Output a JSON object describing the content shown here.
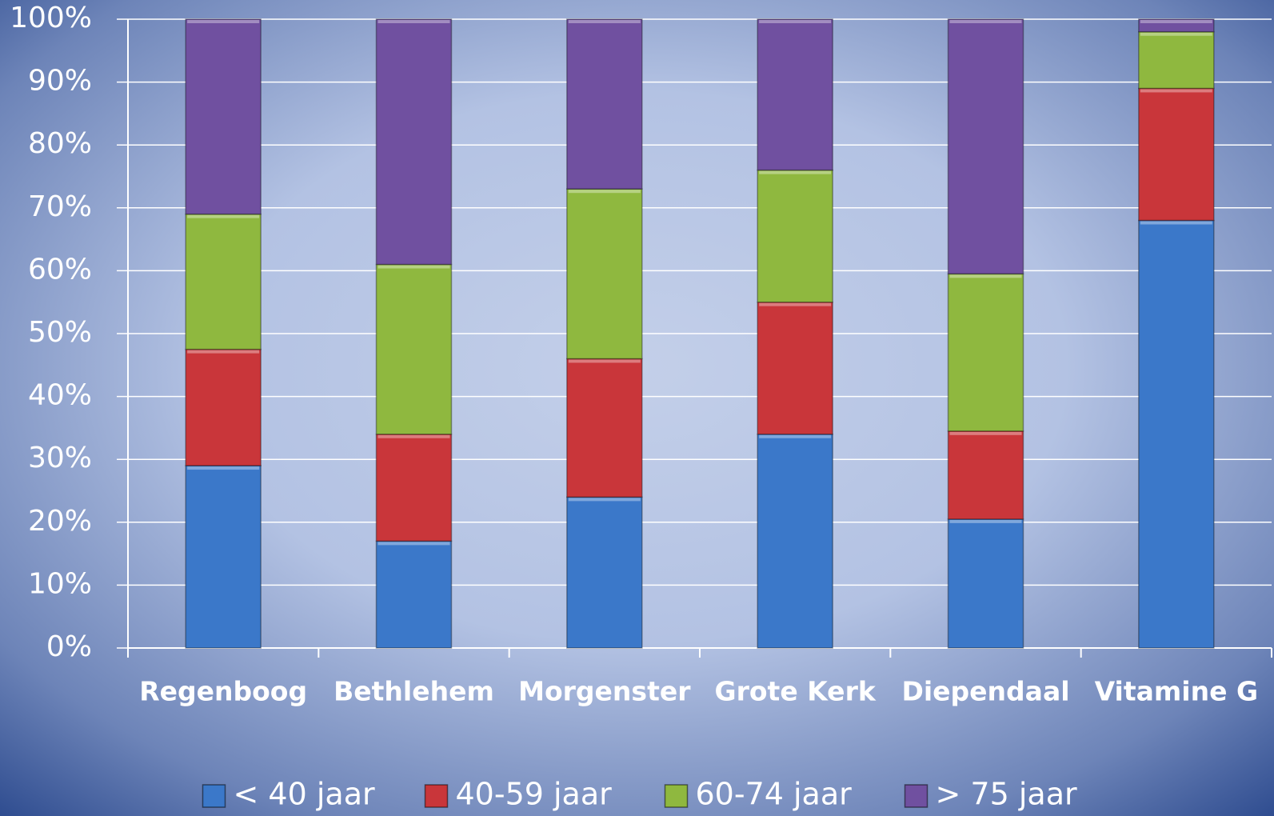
{
  "chart_data": {
    "type": "stacked_bar",
    "categories": [
      "Regenboog",
      "Bethlehem",
      "Morgenster",
      "Grote Kerk",
      "Diependaal",
      "Vitamine G"
    ],
    "series": [
      {
        "name": "< 40 jaar",
        "color": "#3b78c9",
        "values": [
          29,
          17,
          24,
          34,
          20.5,
          68
        ]
      },
      {
        "name": "40-59 jaar",
        "color": "#c9363a",
        "values": [
          18.5,
          17,
          22,
          21,
          14,
          21
        ]
      },
      {
        "name": "60-74 jaar",
        "color": "#8fb83f",
        "values": [
          21.5,
          27,
          27,
          21,
          25,
          9
        ]
      },
      {
        "name": "> 75 jaar",
        "color": "#7050a0",
        "values": [
          31,
          39,
          27,
          24,
          40.5,
          2
        ]
      }
    ],
    "ylim": [
      0,
      100
    ],
    "yticks": [
      {
        "value": 0,
        "label": "0%"
      },
      {
        "value": 10,
        "label": "10%"
      },
      {
        "value": 20,
        "label": "20%"
      },
      {
        "value": 30,
        "label": "30%"
      },
      {
        "value": 40,
        "label": "40%"
      },
      {
        "value": 50,
        "label": "50%"
      },
      {
        "value": 60,
        "label": "60%"
      },
      {
        "value": 70,
        "label": "70%"
      },
      {
        "value": 80,
        "label": "80%"
      },
      {
        "value": 90,
        "label": "90%"
      },
      {
        "value": 100,
        "label": "100%"
      }
    ],
    "grid": true,
    "legend": "bottom"
  }
}
